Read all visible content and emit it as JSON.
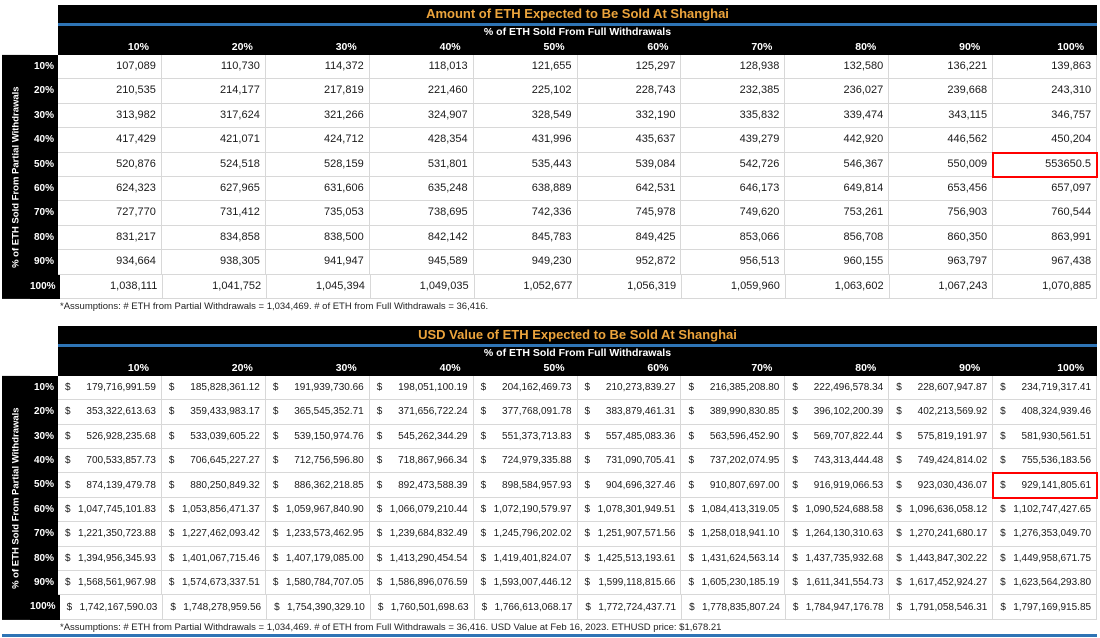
{
  "colors": {
    "title_text": "#ECA43C",
    "header_bg": "#000000",
    "header_text": "#FFFFFF",
    "accent_line_blue": "#2E74B5",
    "cell_border": "#D8D8D8",
    "highlight_border": "#FF0000"
  },
  "chart_data": [
    {
      "type": "table",
      "title": "Amount of ETH Expected to Be Sold At Shanghai",
      "column_axis_label": "% of ETH Sold From Full Withdrawals",
      "row_axis_label": "% of ETH Sold From Partial Withdrawals",
      "currency_symbol": "",
      "columns": [
        "10%",
        "20%",
        "30%",
        "40%",
        "50%",
        "60%",
        "70%",
        "80%",
        "90%",
        "100%"
      ],
      "row_labels": [
        "10%",
        "20%",
        "30%",
        "40%",
        "50%",
        "60%",
        "70%",
        "80%",
        "90%",
        "100%"
      ],
      "values": [
        [
          "107,089",
          "110,730",
          "114,372",
          "118,013",
          "121,655",
          "125,297",
          "128,938",
          "132,580",
          "136,221",
          "139,863"
        ],
        [
          "210,535",
          "214,177",
          "217,819",
          "221,460",
          "225,102",
          "228,743",
          "232,385",
          "236,027",
          "239,668",
          "243,310"
        ],
        [
          "313,982",
          "317,624",
          "321,266",
          "324,907",
          "328,549",
          "332,190",
          "335,832",
          "339,474",
          "343,115",
          "346,757"
        ],
        [
          "417,429",
          "421,071",
          "424,712",
          "428,354",
          "431,996",
          "435,637",
          "439,279",
          "442,920",
          "446,562",
          "450,204"
        ],
        [
          "520,876",
          "524,518",
          "528,159",
          "531,801",
          "535,443",
          "539,084",
          "542,726",
          "546,367",
          "550,009",
          "553650.5"
        ],
        [
          "624,323",
          "627,965",
          "631,606",
          "635,248",
          "638,889",
          "642,531",
          "646,173",
          "649,814",
          "653,456",
          "657,097"
        ],
        [
          "727,770",
          "731,412",
          "735,053",
          "738,695",
          "742,336",
          "745,978",
          "749,620",
          "753,261",
          "756,903",
          "760,544"
        ],
        [
          "831,217",
          "834,858",
          "838,500",
          "842,142",
          "845,783",
          "849,425",
          "853,066",
          "856,708",
          "860,350",
          "863,991"
        ],
        [
          "934,664",
          "938,305",
          "941,947",
          "945,589",
          "949,230",
          "952,872",
          "956,513",
          "960,155",
          "963,797",
          "967,438"
        ],
        [
          "1,038,111",
          "1,041,752",
          "1,045,394",
          "1,049,035",
          "1,052,677",
          "1,056,319",
          "1,059,960",
          "1,063,602",
          "1,067,243",
          "1,070,885"
        ]
      ],
      "highlight_cell": {
        "row": 4,
        "col": 9
      },
      "footnote": "*Assumptions: # ETH from Partial Withdrawals = 1,034,469. # of ETH from Full Withdrawals = 36,416."
    },
    {
      "type": "table",
      "title": "USD Value of ETH Expected to Be Sold At Shanghai",
      "column_axis_label": "% of ETH Sold From Full Withdrawals",
      "row_axis_label": "% of ETH Sold From Partial Withdrawals",
      "currency_symbol": "$",
      "columns": [
        "10%",
        "20%",
        "30%",
        "40%",
        "50%",
        "60%",
        "70%",
        "80%",
        "90%",
        "100%"
      ],
      "row_labels": [
        "10%",
        "20%",
        "30%",
        "40%",
        "50%",
        "60%",
        "70%",
        "80%",
        "90%",
        "100%"
      ],
      "values": [
        [
          "179,716,991.59",
          "185,828,361.12",
          "191,939,730.66",
          "198,051,100.19",
          "204,162,469.73",
          "210,273,839.27",
          "216,385,208.80",
          "222,496,578.34",
          "228,607,947.87",
          "234,719,317.41"
        ],
        [
          "353,322,613.63",
          "359,433,983.17",
          "365,545,352.71",
          "371,656,722.24",
          "377,768,091.78",
          "383,879,461.31",
          "389,990,830.85",
          "396,102,200.39",
          "402,213,569.92",
          "408,324,939.46"
        ],
        [
          "526,928,235.68",
          "533,039,605.22",
          "539,150,974.76",
          "545,262,344.29",
          "551,373,713.83",
          "557,485,083.36",
          "563,596,452.90",
          "569,707,822.44",
          "575,819,191.97",
          "581,930,561.51"
        ],
        [
          "700,533,857.73",
          "706,645,227.27",
          "712,756,596.80",
          "718,867,966.34",
          "724,979,335.88",
          "731,090,705.41",
          "737,202,074.95",
          "743,313,444.48",
          "749,424,814.02",
          "755,536,183.56"
        ],
        [
          "874,139,479.78",
          "880,250,849.32",
          "886,362,218.85",
          "892,473,588.39",
          "898,584,957.93",
          "904,696,327.46",
          "910,807,697.00",
          "916,919,066.53",
          "923,030,436.07",
          "929,141,805.61"
        ],
        [
          "1,047,745,101.83",
          "1,053,856,471.37",
          "1,059,967,840.90",
          "1,066,079,210.44",
          "1,072,190,579.97",
          "1,078,301,949.51",
          "1,084,413,319.05",
          "1,090,524,688.58",
          "1,096,636,058.12",
          "1,102,747,427.65"
        ],
        [
          "1,221,350,723.88",
          "1,227,462,093.42",
          "1,233,573,462.95",
          "1,239,684,832.49",
          "1,245,796,202.02",
          "1,251,907,571.56",
          "1,258,018,941.10",
          "1,264,130,310.63",
          "1,270,241,680.17",
          "1,276,353,049.70"
        ],
        [
          "1,394,956,345.93",
          "1,401,067,715.46",
          "1,407,179,085.00",
          "1,413,290,454.54",
          "1,419,401,824.07",
          "1,425,513,193.61",
          "1,431,624,563.14",
          "1,437,735,932.68",
          "1,443,847,302.22",
          "1,449,958,671.75"
        ],
        [
          "1,568,561,967.98",
          "1,574,673,337.51",
          "1,580,784,707.05",
          "1,586,896,076.59",
          "1,593,007,446.12",
          "1,599,118,815.66",
          "1,605,230,185.19",
          "1,611,341,554.73",
          "1,617,452,924.27",
          "1,623,564,293.80"
        ],
        [
          "1,742,167,590.03",
          "1,748,278,959.56",
          "1,754,390,329.10",
          "1,760,501,698.63",
          "1,766,613,068.17",
          "1,772,724,437.71",
          "1,778,835,807.24",
          "1,784,947,176.78",
          "1,791,058,546.31",
          "1,797,169,915.85"
        ]
      ],
      "highlight_cell": {
        "row": 4,
        "col": 9
      },
      "footnote": "*Assumptions: # ETH from Partial Withdrawals = 1,034,469. # of ETH from Full Withdrawals = 36,416. USD Value at Feb 16, 2023. ETHUSD price: $1,678.21"
    }
  ]
}
